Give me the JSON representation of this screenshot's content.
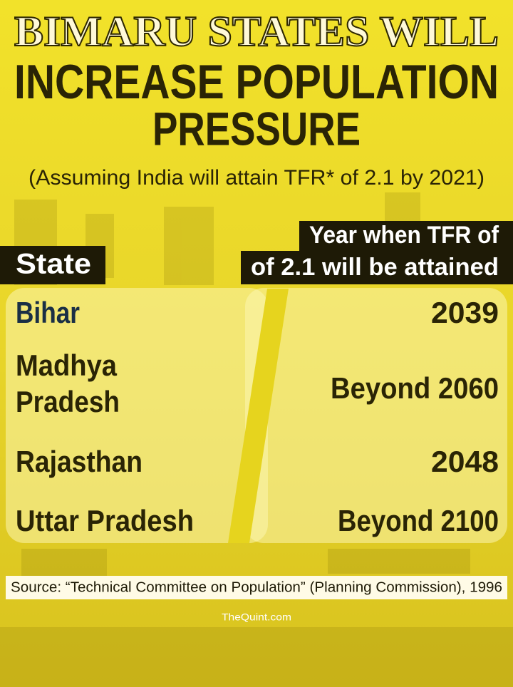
{
  "header": {
    "title_lines": [
      "BIMARU STATES WILL",
      "INCREASE POPULATION",
      "PRESSURE"
    ],
    "subtitle": "(Assuming India will attain TFR* of 2.1 by 2021)"
  },
  "table": {
    "headers": [
      [
        "State"
      ],
      [
        "Year when TFR of",
        "of 2.1 will be attained"
      ]
    ],
    "rows": [
      [
        [
          "Bihar"
        ],
        [
          "2039"
        ]
      ],
      [
        [
          "Madhya",
          "Pradesh"
        ],
        [
          "Beyond 2060"
        ]
      ],
      [
        [
          "Rajasthan"
        ],
        [
          "2048"
        ]
      ],
      [
        [
          "Uttar Pradesh"
        ],
        [
          "Beyond 2100"
        ]
      ]
    ]
  },
  "source": "Source: “Technical Committee on Population” (Planning Commission), 1996",
  "credit": "TheQuint.com"
}
